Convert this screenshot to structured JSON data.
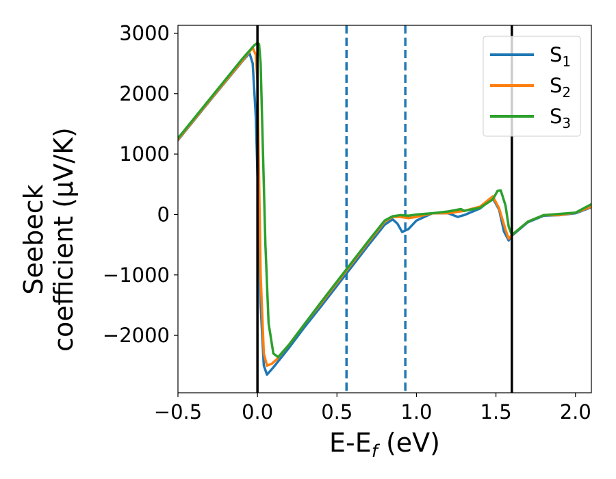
{
  "chart_data": {
    "type": "line",
    "xlabel": "E-E_f (eV)",
    "ylabel_line1": "Seebeck",
    "ylabel_line2": "coefficient  (μV/K)",
    "xlim": [
      -0.5,
      2.1
    ],
    "ylim": [
      -2950,
      3130
    ],
    "x_ticks": [
      {
        "value": -0.5,
        "label": "−0.5"
      },
      {
        "value": 0.0,
        "label": "0.0"
      },
      {
        "value": 0.5,
        "label": "0.5"
      },
      {
        "value": 1.0,
        "label": "1.0"
      },
      {
        "value": 1.5,
        "label": "1.5"
      },
      {
        "value": 2.0,
        "label": "2.0"
      }
    ],
    "y_ticks": [
      {
        "value": 3000,
        "label": "3000"
      },
      {
        "value": 2000,
        "label": "2000"
      },
      {
        "value": 1000,
        "label": "1000"
      },
      {
        "value": 0,
        "label": "0"
      },
      {
        "value": -1000,
        "label": "−1000"
      },
      {
        "value": -2000,
        "label": "−2000"
      }
    ],
    "grid": false,
    "legend_position": "top-right",
    "vlines": [
      {
        "x": 0.0,
        "style": "solid",
        "color": "#000000"
      },
      {
        "x": 1.6,
        "style": "solid",
        "color": "#000000"
      },
      {
        "x": 0.56,
        "style": "dashed",
        "color": "#1f77b4"
      },
      {
        "x": 0.93,
        "style": "dashed",
        "color": "#1f77b4"
      }
    ],
    "series": [
      {
        "name": "S1",
        "legend_base": "S",
        "legend_sub": "1",
        "color": "#1f77b4",
        "x": [
          -0.5,
          -0.3,
          -0.1,
          -0.05,
          -0.03,
          -0.01,
          0.01,
          0.02,
          0.04,
          0.06,
          0.1,
          0.2,
          0.3,
          0.4,
          0.5,
          0.6,
          0.7,
          0.8,
          0.85,
          0.88,
          0.91,
          0.95,
          1.0,
          1.1,
          1.2,
          1.26,
          1.3,
          1.4,
          1.48,
          1.52,
          1.55,
          1.58,
          1.6,
          1.7,
          1.8,
          1.9,
          2.0,
          2.1
        ],
        "y": [
          1230,
          1880,
          2520,
          2670,
          2500,
          1600,
          -300,
          -1500,
          -2500,
          -2650,
          -2530,
          -2200,
          -1850,
          -1520,
          -1180,
          -840,
          -500,
          -170,
          -80,
          -150,
          -290,
          -240,
          -100,
          20,
          20,
          -40,
          -10,
          100,
          270,
          80,
          -280,
          -430,
          -350,
          -130,
          -20,
          -10,
          20,
          120
        ]
      },
      {
        "name": "S2",
        "legend_base": "S",
        "legend_sub": "2",
        "color": "#ff7f0e",
        "x": [
          -0.5,
          -0.3,
          -0.1,
          -0.03,
          -0.01,
          0.0,
          0.01,
          0.02,
          0.04,
          0.06,
          0.09,
          0.12,
          0.2,
          0.3,
          0.4,
          0.5,
          0.6,
          0.7,
          0.8,
          0.85,
          0.9,
          0.95,
          1.0,
          1.1,
          1.2,
          1.3,
          1.4,
          1.48,
          1.52,
          1.56,
          1.58,
          1.6,
          1.7,
          1.8,
          1.9,
          2.0,
          2.1
        ],
        "y": [
          1240,
          1890,
          2530,
          2760,
          2640,
          2200,
          600,
          -1000,
          -2300,
          -2500,
          -2470,
          -2400,
          -2150,
          -1800,
          -1470,
          -1130,
          -790,
          -450,
          -120,
          -40,
          -40,
          -60,
          -40,
          20,
          20,
          60,
          130,
          300,
          100,
          -250,
          -400,
          -340,
          -120,
          -10,
          -10,
          30,
          130
        ]
      },
      {
        "name": "S3",
        "legend_base": "S",
        "legend_sub": "3",
        "color": "#2ca02c",
        "x": [
          -0.5,
          -0.3,
          -0.1,
          -0.02,
          0.0,
          0.01,
          0.02,
          0.03,
          0.05,
          0.07,
          0.1,
          0.13,
          0.2,
          0.3,
          0.4,
          0.5,
          0.6,
          0.7,
          0.8,
          0.85,
          0.9,
          0.95,
          1.0,
          1.1,
          1.2,
          1.28,
          1.3,
          1.4,
          1.48,
          1.51,
          1.53,
          1.56,
          1.58,
          1.6,
          1.7,
          1.8,
          1.9,
          2.0,
          2.1
        ],
        "y": [
          1260,
          1910,
          2560,
          2800,
          2840,
          2820,
          2500,
          1500,
          -500,
          -1800,
          -2300,
          -2360,
          -2150,
          -1800,
          -1450,
          -1110,
          -770,
          -430,
          -100,
          -30,
          -10,
          -20,
          0,
          20,
          50,
          90,
          60,
          110,
          250,
          390,
          400,
          150,
          -200,
          -340,
          -120,
          -10,
          10,
          30,
          170
        ]
      }
    ]
  }
}
